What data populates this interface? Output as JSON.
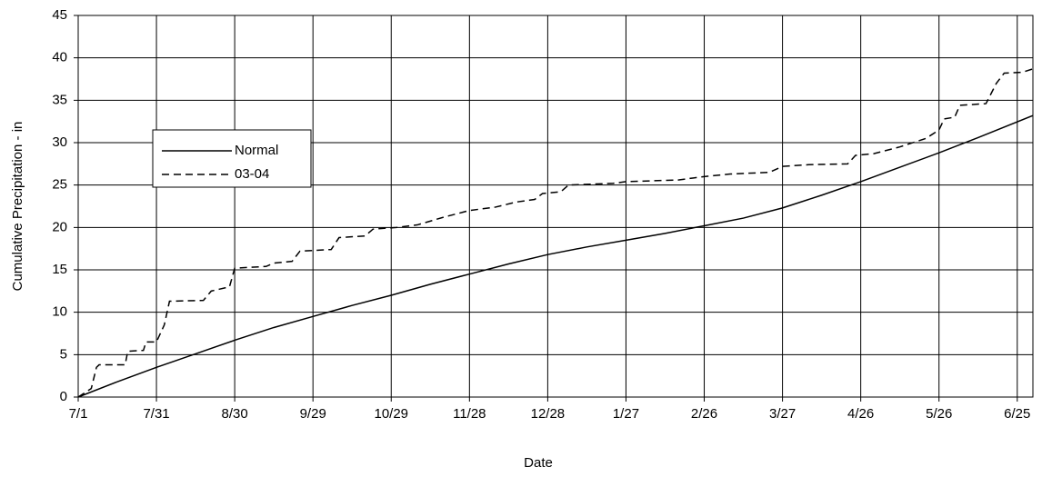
{
  "chart_data": {
    "type": "line",
    "xlabel": "Date",
    "ylabel": "Cumulative Precipitation - in",
    "xlim": [
      0,
      366
    ],
    "ylim": [
      0,
      45
    ],
    "xticks": [
      {
        "value": 0,
        "label": "7/1"
      },
      {
        "value": 30,
        "label": "7/31"
      },
      {
        "value": 60,
        "label": "8/30"
      },
      {
        "value": 90,
        "label": "9/29"
      },
      {
        "value": 120,
        "label": "10/29"
      },
      {
        "value": 150,
        "label": "11/28"
      },
      {
        "value": 180,
        "label": "12/28"
      },
      {
        "value": 210,
        "label": "1/27"
      },
      {
        "value": 240,
        "label": "2/26"
      },
      {
        "value": 270,
        "label": "3/27"
      },
      {
        "value": 300,
        "label": "4/26"
      },
      {
        "value": 330,
        "label": "5/26"
      },
      {
        "value": 360,
        "label": "6/25"
      }
    ],
    "yticks": [
      0,
      5,
      10,
      15,
      20,
      25,
      30,
      35,
      40,
      45
    ],
    "grid": true,
    "series": [
      {
        "name": "Normal",
        "color": "#000000",
        "dash": "solid",
        "x": [
          0,
          15,
          30,
          45,
          60,
          75,
          90,
          105,
          120,
          135,
          150,
          165,
          180,
          195,
          210,
          225,
          240,
          255,
          270,
          285,
          300,
          315,
          330,
          345,
          366
        ],
        "values": [
          0,
          1.8,
          3.5,
          5.1,
          6.7,
          8.2,
          9.5,
          10.8,
          12,
          13.3,
          14.5,
          15.7,
          16.8,
          17.7,
          18.5,
          19.3,
          20.2,
          21.1,
          22.3,
          23.8,
          25.4,
          27.1,
          28.8,
          30.6,
          33.2
        ]
      },
      {
        "name": "03-04",
        "color": "#000000",
        "dash": "dashed",
        "x": [
          0,
          5,
          7,
          8,
          18,
          19,
          25,
          26,
          30,
          33,
          35,
          48,
          51,
          58,
          60,
          72,
          75,
          82,
          85,
          97,
          100,
          110,
          113,
          122,
          130,
          140,
          150,
          160,
          168,
          175,
          178,
          185,
          188,
          205,
          210,
          230,
          240,
          250,
          265,
          270,
          280,
          295,
          298,
          305,
          315,
          325,
          330,
          332,
          336,
          338,
          348,
          352,
          355,
          362,
          366
        ],
        "values": [
          0,
          1,
          3.5,
          3.8,
          3.8,
          5.4,
          5.5,
          6.5,
          6.5,
          8.5,
          11.3,
          11.4,
          12.5,
          13,
          15.2,
          15.4,
          15.8,
          16,
          17.2,
          17.4,
          18.8,
          19,
          19.8,
          20,
          20.3,
          21.2,
          22,
          22.4,
          23,
          23.3,
          24,
          24.2,
          25,
          25.2,
          25.4,
          25.6,
          26,
          26.3,
          26.5,
          27.2,
          27.4,
          27.5,
          28.5,
          28.7,
          29.5,
          30.5,
          31.5,
          32.8,
          33,
          34.4,
          34.6,
          37,
          38.2,
          38.3,
          38.7
        ]
      }
    ]
  }
}
